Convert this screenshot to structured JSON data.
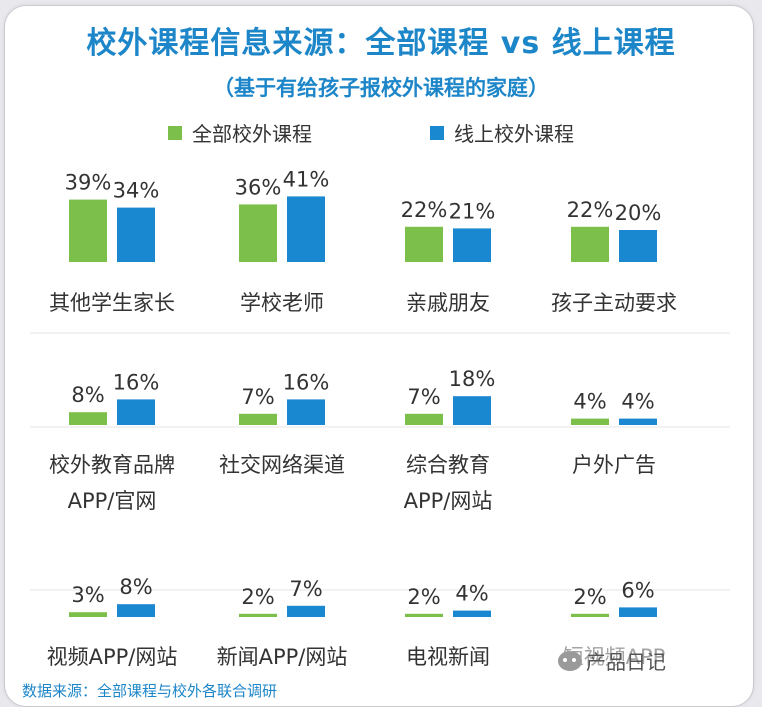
{
  "header": {
    "title": "校外课程信息来源：全部课程 vs 线上课程",
    "subtitle": "（基于有给孩子报校外课程的家庭）"
  },
  "footer": {
    "source": "数据来源：全部课程与校外各联合调研"
  },
  "watermark": {
    "text": "产品日记"
  },
  "colors": {
    "series1": "#7cc04b",
    "series2": "#1a87d1",
    "grid": "#e4e4e4"
  },
  "chart_data": {
    "type": "bar",
    "title": "校外课程信息来源：全部课程 vs 线上课程",
    "subtitle": "（基于有给孩子报校外课程的家庭）",
    "unit": "%",
    "legend_position": "top",
    "series": [
      {
        "name": "全部校外课程",
        "color": "#7cc04b",
        "values": [
          39,
          36,
          22,
          22,
          8,
          7,
          7,
          4,
          3,
          2,
          2,
          2
        ]
      },
      {
        "name": "线上校外课程",
        "color": "#1a87d1",
        "values": [
          34,
          41,
          21,
          20,
          16,
          16,
          18,
          4,
          8,
          7,
          4,
          6
        ]
      }
    ],
    "categories": [
      [
        "其他学生家长"
      ],
      [
        "学校老师"
      ],
      [
        "亲戚朋友"
      ],
      [
        "孩子主动要求"
      ],
      [
        "校外教育品牌",
        "APP/官网"
      ],
      [
        "社交网络渠道"
      ],
      [
        "综合教育",
        "APP/网站"
      ],
      [
        "户外广告"
      ],
      [
        "视频APP/网站"
      ],
      [
        "新闻APP/网站"
      ],
      [
        "电视新闻"
      ],
      [
        "短视频APP"
      ]
    ],
    "labels": [
      [
        "39%",
        "34%"
      ],
      [
        "36%",
        "41%"
      ],
      [
        "22%",
        "21%"
      ],
      [
        "22%",
        "20%"
      ],
      [
        "8%",
        "16%"
      ],
      [
        "7%",
        "16%"
      ],
      [
        "7%",
        "18%"
      ],
      [
        "4%",
        "4%"
      ],
      [
        "3%",
        "8%"
      ],
      [
        "2%",
        "7%"
      ],
      [
        "2%",
        "4%"
      ],
      [
        "2%",
        "6%"
      ]
    ]
  }
}
